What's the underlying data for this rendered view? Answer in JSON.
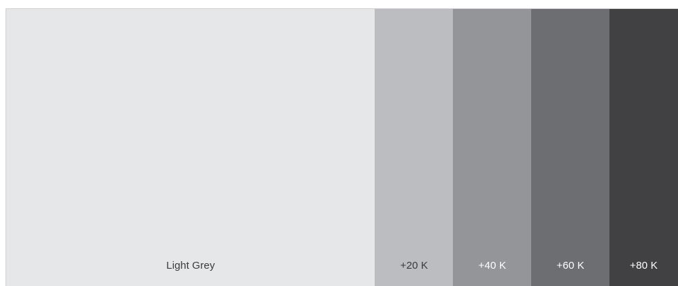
{
  "swatches": [
    {
      "label": "Light Grey",
      "color": "#e6e7e8",
      "text_color": "#3a3a3c"
    },
    {
      "label": "+20 K",
      "color": "#bcbdc0",
      "text_color": "#3a3a3c"
    },
    {
      "label": "+40 K",
      "color": "#939598",
      "text_color": "#ffffff"
    },
    {
      "label": "+60 K",
      "color": "#6d6e71",
      "text_color": "#ffffff"
    },
    {
      "label": "+80 K",
      "color": "#414042",
      "text_color": "#ffffff"
    }
  ]
}
